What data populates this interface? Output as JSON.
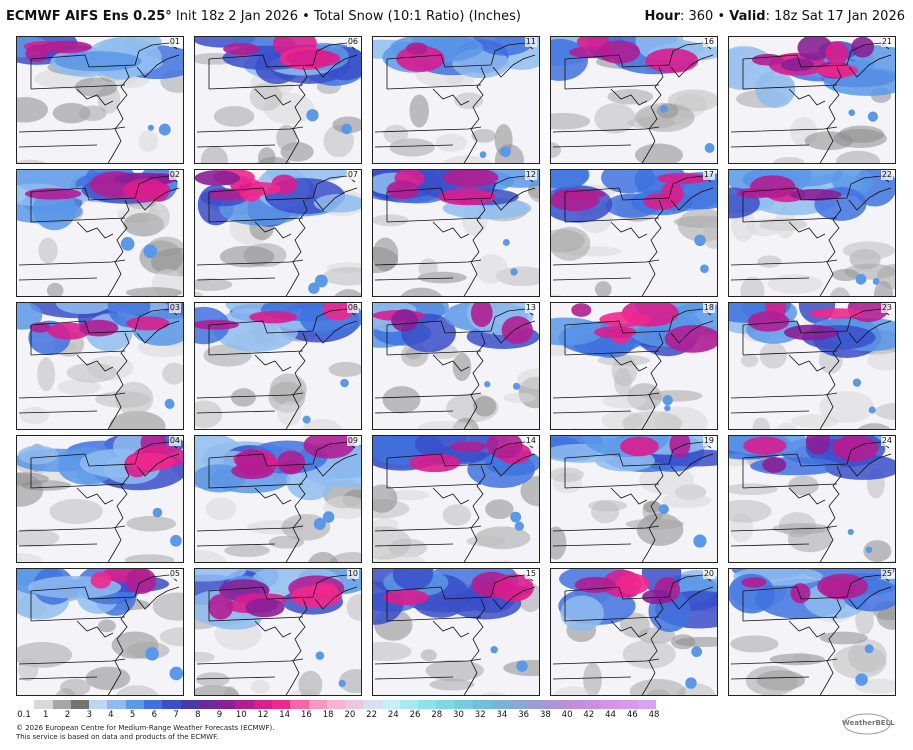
{
  "header": {
    "model": "ECMWF AIFS Ens 0.25°",
    "info": "Init 18z 2 Jan 2026 • Total Snow (10:1 Ratio) (Inches)",
    "hour_label": "Hour",
    "hour_value": ": 360 •",
    "valid_label": "Valid",
    "valid_value": ": 18z Sat 17 Jan 2026"
  },
  "members": [
    "01",
    "06",
    "11",
    "16",
    "21",
    "02",
    "07",
    "12",
    "17",
    "22",
    "03",
    "08",
    "13",
    "18",
    "23",
    "04",
    "09",
    "14",
    "19",
    "24",
    "05",
    "10",
    "15",
    "20",
    "25"
  ],
  "member_intensity": [
    0.3,
    0.4,
    0.25,
    0.45,
    0.85,
    0.8,
    0.75,
    0.55,
    0.55,
    0.45,
    0.45,
    0.3,
    0.45,
    0.7,
    0.55,
    0.6,
    0.75,
    0.45,
    0.2,
    0.5,
    0.35,
    0.85,
    0.45,
    0.7,
    0.4
  ],
  "colorbar": {
    "colors": [
      "#ffffff",
      "#d9d9d9",
      "#a6a6a6",
      "#737373",
      "#bcd7f5",
      "#8fbcf0",
      "#5a98e8",
      "#3f72df",
      "#3a4fc9",
      "#4a3aa8",
      "#6a2b9e",
      "#8a1f96",
      "#b01e92",
      "#d81e8e",
      "#f0288e",
      "#f765a8",
      "#f899c2",
      "#f6b3d3",
      "#eac7dc",
      "#d8dff0",
      "#c6f0f4",
      "#a6eaf0",
      "#8ee0ea",
      "#7fd6e4",
      "#74cbe0",
      "#6fc0dc",
      "#7ab3d8",
      "#8aa7d6",
      "#9c9cd6",
      "#ae94d8",
      "#bf8fdc",
      "#cc8ee2",
      "#d694e8",
      "#d99aee",
      "#dca2f2"
    ],
    "labels": [
      "0.1",
      "1",
      "2",
      "3",
      "4",
      "5",
      "6",
      "7",
      "8",
      "9",
      "10",
      "12",
      "14",
      "16",
      "18",
      "20",
      "22",
      "24",
      "26",
      "28",
      "30",
      "32",
      "34",
      "36",
      "38",
      "40",
      "42",
      "44",
      "46",
      "48"
    ]
  },
  "footer": {
    "line1": "© 2026 European Centre for Medium-Range Weather Forecasts (ECMWF).",
    "line2": "This service is based on data and products of the ECMWF."
  },
  "logo_text": "WeatherBELL"
}
